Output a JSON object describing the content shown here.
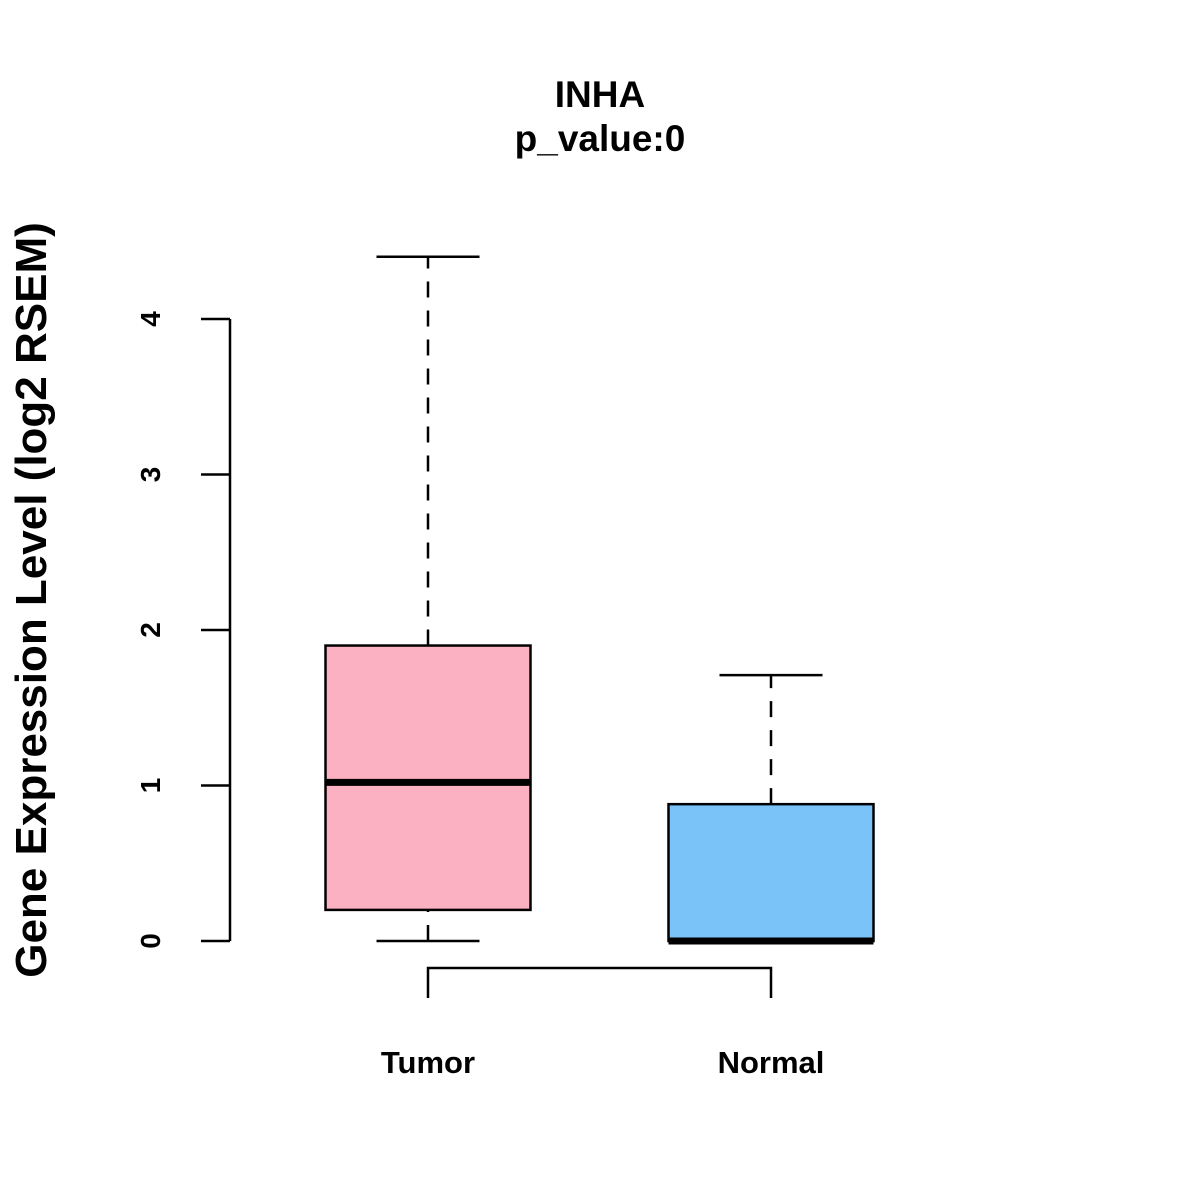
{
  "chart_data": {
    "type": "boxplot",
    "title": "INHA",
    "subtitle": "p_value:0",
    "xlabel": "",
    "ylabel": "Gene Expression Level (log2 RSEM)",
    "ylim": [
      0,
      4
    ],
    "yticks": [
      "0",
      "1",
      "2",
      "3",
      "4"
    ],
    "categories": [
      "Tumor",
      "Normal"
    ],
    "boxes": [
      {
        "name": "Tumor",
        "min": 0.0,
        "q1": 0.2,
        "median": 1.02,
        "q3": 1.9,
        "max": 4.4,
        "color": "#FCB1C3"
      },
      {
        "name": "Normal",
        "min": 0.0,
        "q1": 0.0,
        "median": 0.0,
        "q3": 0.88,
        "max": 1.71,
        "color": "#7AC3F9"
      }
    ],
    "comparison_bracket": [
      "Tumor",
      "Normal"
    ],
    "grid": false,
    "legend": "none"
  }
}
